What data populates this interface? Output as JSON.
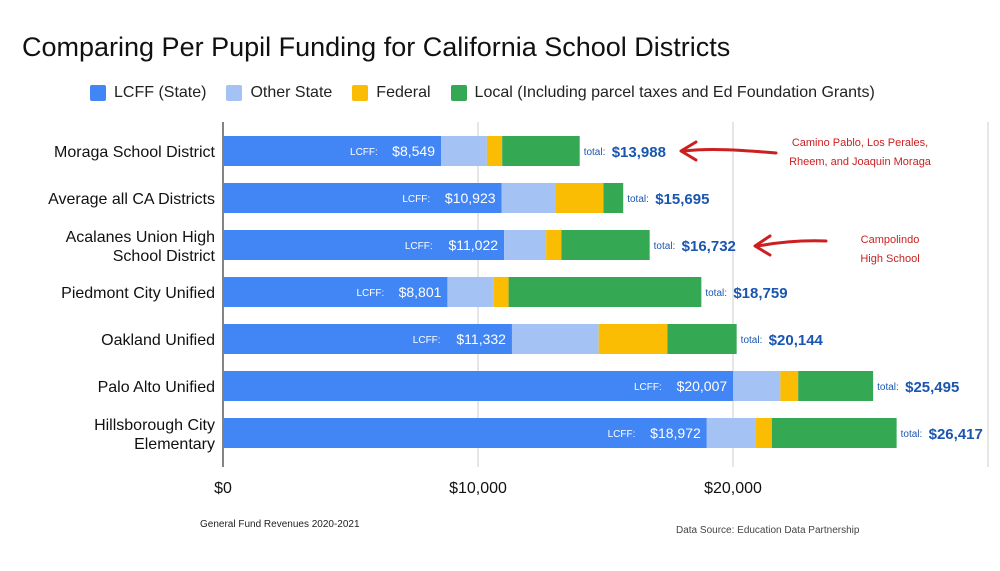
{
  "chart_data": {
    "type": "bar",
    "orientation": "horizontal",
    "stacked": true,
    "title": "Comparing Per Pupil Funding for California School Districts",
    "categories": [
      [
        "Moraga School District"
      ],
      [
        "Average all CA Districts"
      ],
      [
        "Acalanes Union High",
        "School District"
      ],
      [
        "Piedmont City Unified"
      ],
      [
        "Oakland Unified"
      ],
      [
        "Palo Alto Unified"
      ],
      [
        "Hillsborough City",
        "Elementary"
      ]
    ],
    "series": [
      {
        "name": "LCFF (State)",
        "color": "#4285f4",
        "values": [
          8549,
          10923,
          11022,
          8801,
          11332,
          20007,
          18972
        ]
      },
      {
        "name": "Other State",
        "color": "#a4c2f4",
        "values": [
          1800,
          2100,
          1650,
          1800,
          3400,
          1850,
          1900
        ]
      },
      {
        "name": "Federal",
        "color": "#fbbc04",
        "values": [
          600,
          1900,
          600,
          600,
          2700,
          700,
          650
        ]
      },
      {
        "name": "Local (Including parcel taxes and Ed Foundation Grants)",
        "color": "#34a853",
        "values": [
          3039,
          772,
          3460,
          7558,
          2712,
          2938,
          4895
        ]
      }
    ],
    "lcff_labels": [
      "$8,549",
      "$10,923",
      "$11,022",
      "$8,801",
      "$11,332",
      "$20,007",
      "$18,972"
    ],
    "lcff_prefix": "LCFF:",
    "total_prefix": "total:",
    "totals": [
      "$13,988",
      "$15,695",
      "$16,732",
      "$18,759",
      "$20,144",
      "$25,495",
      "$26,417"
    ],
    "xlim": [
      0,
      30000
    ],
    "xticks": [
      0,
      10000,
      20000
    ],
    "xtick_labels": [
      "$0",
      "$10,000",
      "$20,000"
    ],
    "grid": true,
    "legend_position": "top"
  },
  "footnote": "General Fund Revenues 2020-2021",
  "source": "Data Source:  Education Data Partnership",
  "annotations": [
    {
      "lines": [
        "Camino Pablo, Los Perales,",
        "Rheem, and Joaquin Moraga"
      ],
      "row": 0
    },
    {
      "lines": [
        "Campolindo",
        "High School"
      ],
      "row": 2
    }
  ],
  "colors": {
    "total_text": "#1a56b0",
    "annotation": "#cc1f1f",
    "grid": "#cccccc"
  }
}
